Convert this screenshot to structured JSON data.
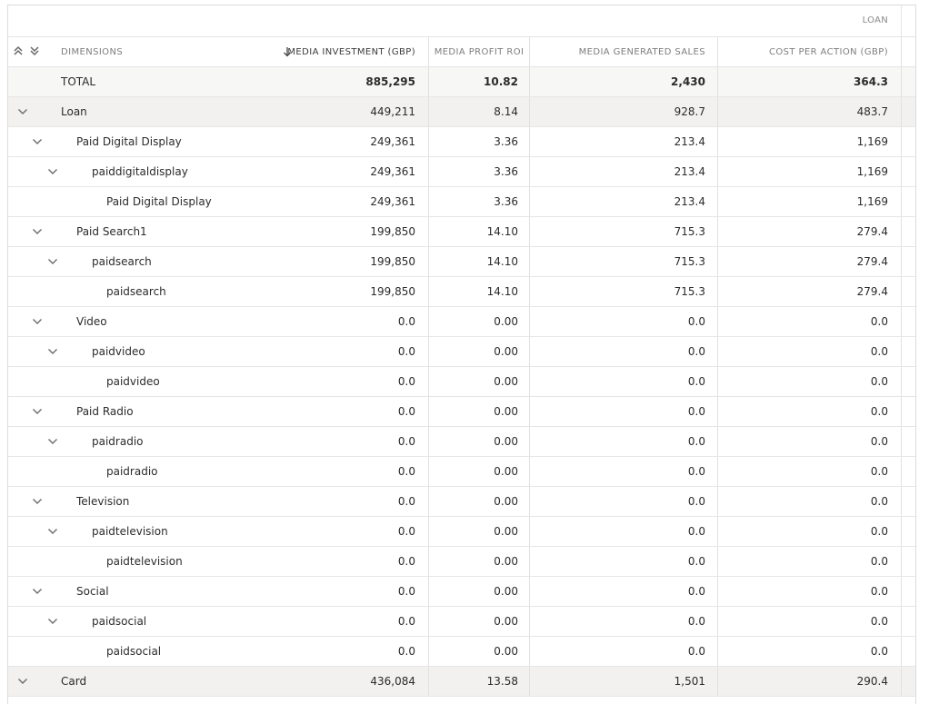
{
  "table": {
    "group_label": "LOAN",
    "columns": {
      "dimensions": "DIMENSIONS",
      "investment": "MEDIA INVESTMENT (GBP)",
      "roi": "MEDIA PROFIT ROI",
      "sales": "MEDIA GENERATED SALES",
      "cpa": "COST PER ACTION (GBP)"
    },
    "icons": {
      "expand_all": "double-chevron-up-icon",
      "collapse_all": "double-chevron-down-icon",
      "sort": "arrow-down-icon",
      "row_toggle": "chevron-down-icon"
    },
    "rows": [
      {
        "label": "TOTAL",
        "level": -1,
        "expandable": false,
        "investment": "885,295",
        "roi": "10.82",
        "sales": "2,430",
        "cpa": "364.3"
      },
      {
        "label": "Loan",
        "level": 0,
        "expandable": true,
        "investment": "449,211",
        "roi": "8.14",
        "sales": "928.7",
        "cpa": "483.7"
      },
      {
        "label": "Paid Digital Display",
        "level": 1,
        "expandable": true,
        "investment": "249,361",
        "roi": "3.36",
        "sales": "213.4",
        "cpa": "1,169"
      },
      {
        "label": "paiddigitaldisplay",
        "level": 2,
        "expandable": true,
        "investment": "249,361",
        "roi": "3.36",
        "sales": "213.4",
        "cpa": "1,169"
      },
      {
        "label": "Paid Digital Display",
        "level": 3,
        "expandable": false,
        "investment": "249,361",
        "roi": "3.36",
        "sales": "213.4",
        "cpa": "1,169"
      },
      {
        "label": "Paid Search1",
        "level": 1,
        "expandable": true,
        "investment": "199,850",
        "roi": "14.10",
        "sales": "715.3",
        "cpa": "279.4"
      },
      {
        "label": "paidsearch",
        "level": 2,
        "expandable": true,
        "investment": "199,850",
        "roi": "14.10",
        "sales": "715.3",
        "cpa": "279.4"
      },
      {
        "label": "paidsearch",
        "level": 3,
        "expandable": false,
        "investment": "199,850",
        "roi": "14.10",
        "sales": "715.3",
        "cpa": "279.4"
      },
      {
        "label": "Video",
        "level": 1,
        "expandable": true,
        "investment": "0.0",
        "roi": "0.00",
        "sales": "0.0",
        "cpa": "0.0"
      },
      {
        "label": "paidvideo",
        "level": 2,
        "expandable": true,
        "investment": "0.0",
        "roi": "0.00",
        "sales": "0.0",
        "cpa": "0.0"
      },
      {
        "label": "paidvideo",
        "level": 3,
        "expandable": false,
        "investment": "0.0",
        "roi": "0.00",
        "sales": "0.0",
        "cpa": "0.0"
      },
      {
        "label": "Paid Radio",
        "level": 1,
        "expandable": true,
        "investment": "0.0",
        "roi": "0.00",
        "sales": "0.0",
        "cpa": "0.0"
      },
      {
        "label": "paidradio",
        "level": 2,
        "expandable": true,
        "investment": "0.0",
        "roi": "0.00",
        "sales": "0.0",
        "cpa": "0.0"
      },
      {
        "label": "paidradio",
        "level": 3,
        "expandable": false,
        "investment": "0.0",
        "roi": "0.00",
        "sales": "0.0",
        "cpa": "0.0"
      },
      {
        "label": "Television",
        "level": 1,
        "expandable": true,
        "investment": "0.0",
        "roi": "0.00",
        "sales": "0.0",
        "cpa": "0.0"
      },
      {
        "label": "paidtelevision",
        "level": 2,
        "expandable": true,
        "investment": "0.0",
        "roi": "0.00",
        "sales": "0.0",
        "cpa": "0.0"
      },
      {
        "label": "paidtelevision",
        "level": 3,
        "expandable": false,
        "investment": "0.0",
        "roi": "0.00",
        "sales": "0.0",
        "cpa": "0.0"
      },
      {
        "label": "Social",
        "level": 1,
        "expandable": true,
        "investment": "0.0",
        "roi": "0.00",
        "sales": "0.0",
        "cpa": "0.0"
      },
      {
        "label": "paidsocial",
        "level": 2,
        "expandable": true,
        "investment": "0.0",
        "roi": "0.00",
        "sales": "0.0",
        "cpa": "0.0"
      },
      {
        "label": "paidsocial",
        "level": 3,
        "expandable": false,
        "investment": "0.0",
        "roi": "0.00",
        "sales": "0.0",
        "cpa": "0.0"
      },
      {
        "label": "Card",
        "level": 0,
        "expandable": true,
        "investment": "436,084",
        "roi": "13.58",
        "sales": "1,501",
        "cpa": "290.4"
      }
    ]
  }
}
